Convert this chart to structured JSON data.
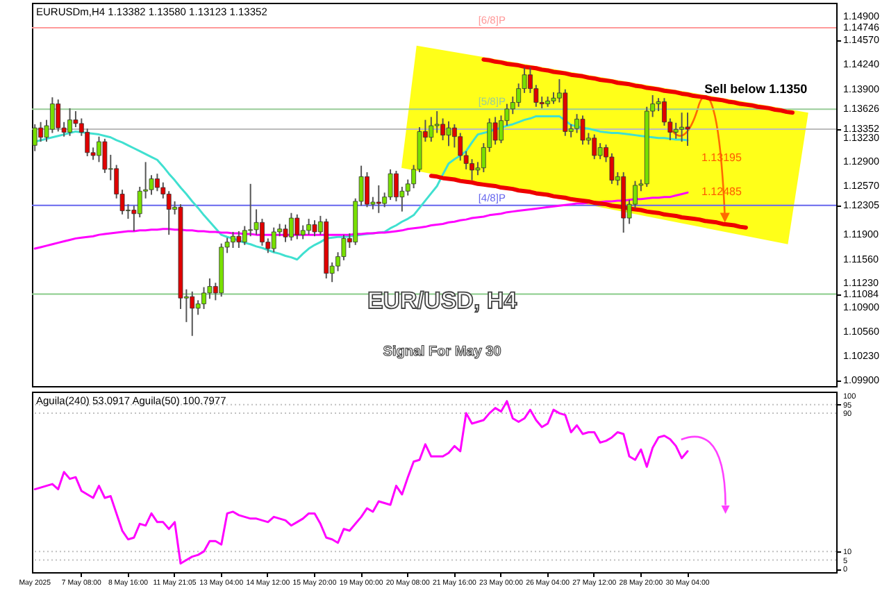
{
  "chart_data": [
    {
      "type": "candlestick",
      "title": "EUR/USD, H4",
      "subtitle": "Signal For May 30",
      "tick_labels": "y",
      "categories": [
        "May 2025",
        null,
        null,
        null,
        null,
        null,
        null,
        null,
        "7 May 08:00",
        null,
        null,
        null,
        null,
        null,
        null,
        null,
        "8 May 16:00",
        null,
        null,
        null,
        null,
        null,
        null,
        null,
        "11 May 21:05",
        null,
        null,
        null,
        null,
        null,
        null,
        null,
        "13 May 04:00",
        null,
        null,
        null,
        null,
        null,
        null,
        null,
        "14 May 12:00",
        null,
        null,
        null,
        null,
        null,
        null,
        null,
        "15 May 20:00",
        null,
        null,
        null,
        null,
        null,
        null,
        null,
        "19 May 00:00",
        null,
        null,
        null,
        null,
        null,
        null,
        null,
        "20 May 08:00",
        null,
        null,
        null,
        null,
        null,
        null,
        null,
        "21 May 16:00",
        null,
        null,
        null,
        null,
        null,
        null,
        null,
        "23 May 00:00",
        null,
        null,
        null,
        null,
        null,
        null,
        null,
        "26 May 04:00",
        null,
        null,
        null,
        null,
        null,
        null,
        null,
        "27 May 12:00",
        null,
        null,
        null,
        null,
        null,
        null,
        null,
        "28 May 20:00",
        null,
        null,
        null,
        null,
        null,
        null,
        null,
        "30 May 04:00",
        null,
        null,
        null,
        null,
        null,
        null,
        null,
        null,
        null,
        null,
        null,
        null,
        null,
        null,
        null,
        null,
        null,
        null,
        null,
        null,
        null,
        null,
        null,
        null,
        null
      ],
      "ohlc": [
        [
          1.1313,
          1.1342,
          1.1305,
          1.1337
        ],
        [
          1.1337,
          1.1345,
          1.1318,
          1.1324
        ],
        [
          1.1324,
          1.1348,
          1.1318,
          1.134
        ],
        [
          1.1335,
          1.1379,
          1.133,
          1.137
        ],
        [
          1.137,
          1.1376,
          1.1332,
          1.1337
        ],
        [
          1.1337,
          1.1345,
          1.1325,
          1.1331
        ],
        [
          1.1331,
          1.1364,
          1.1326,
          1.1348
        ],
        [
          1.1348,
          1.136,
          1.1338,
          1.1343
        ],
        [
          1.1343,
          1.135,
          1.1326,
          1.1331
        ],
        [
          1.1331,
          1.1336,
          1.1298,
          1.1303
        ],
        [
          1.1303,
          1.131,
          1.1293,
          1.1299
        ],
        [
          1.1299,
          1.1325,
          1.129,
          1.1318
        ],
        [
          1.1318,
          1.1322,
          1.1275,
          1.128
        ],
        [
          1.128,
          1.13,
          1.1265,
          1.1281
        ],
        [
          1.1281,
          1.1286,
          1.124,
          1.1246
        ],
        [
          1.1246,
          1.1252,
          1.1218,
          1.1223
        ],
        [
          1.1223,
          1.1232,
          1.1212,
          1.1224
        ],
        [
          1.1224,
          1.123,
          1.1195,
          1.1219
        ],
        [
          1.1219,
          1.1256,
          1.1214,
          1.125
        ],
        [
          1.125,
          1.129,
          1.124,
          1.1252
        ],
        [
          1.1252,
          1.1272,
          1.1245,
          1.1267
        ],
        [
          1.1267,
          1.1274,
          1.125,
          1.1255
        ],
        [
          1.1255,
          1.1262,
          1.124,
          1.1246
        ],
        [
          1.1246,
          1.125,
          1.119,
          1.1225
        ],
        [
          1.1225,
          1.1236,
          1.1218,
          1.1228
        ],
        [
          1.1228,
          1.1232,
          1.1088,
          1.1103
        ],
        [
          1.1103,
          1.1115,
          1.107,
          1.1105
        ],
        [
          1.1105,
          1.1112,
          1.1051,
          1.1089
        ],
        [
          1.1089,
          1.11,
          1.108,
          1.1095
        ],
        [
          1.1095,
          1.1118,
          1.1088,
          1.111
        ],
        [
          1.111,
          1.113,
          1.1102,
          1.1119
        ],
        [
          1.1119,
          1.1124,
          1.11,
          1.111
        ],
        [
          1.111,
          1.1178,
          1.1105,
          1.1173
        ],
        [
          1.1173,
          1.1186,
          1.1165,
          1.118
        ],
        [
          1.118,
          1.1194,
          1.1172,
          1.1188
        ],
        [
          1.1188,
          1.1195,
          1.1172,
          1.118
        ],
        [
          1.118,
          1.1202,
          1.1176,
          1.1196
        ],
        [
          1.1196,
          1.126,
          1.1188,
          1.1197
        ],
        [
          1.1197,
          1.1225,
          1.119,
          1.1207
        ],
        [
          1.1207,
          1.1212,
          1.1175,
          1.118
        ],
        [
          1.118,
          1.1185,
          1.1165,
          1.1171
        ],
        [
          1.1171,
          1.12,
          1.1166,
          1.1194
        ],
        [
          1.1194,
          1.1205,
          1.1188,
          1.1198
        ],
        [
          1.1198,
          1.1204,
          1.118,
          1.1187
        ],
        [
          1.1187,
          1.122,
          1.1182,
          1.1213
        ],
        [
          1.1213,
          1.1218,
          1.1184,
          1.119
        ],
        [
          1.119,
          1.1203,
          1.1184,
          1.1196
        ],
        [
          1.1196,
          1.1212,
          1.119,
          1.1204
        ],
        [
          1.1204,
          1.121,
          1.1188,
          1.1194
        ],
        [
          1.1194,
          1.1216,
          1.119,
          1.1208
        ],
        [
          1.1208,
          1.1212,
          1.113,
          1.1137
        ],
        [
          1.1137,
          1.1152,
          1.1125,
          1.1147
        ],
        [
          1.1147,
          1.1166,
          1.114,
          1.116
        ],
        [
          1.116,
          1.119,
          1.1155,
          1.1185
        ],
        [
          1.1185,
          1.1192,
          1.1172,
          1.118
        ],
        [
          1.118,
          1.124,
          1.1176,
          1.1236
        ],
        [
          1.1236,
          1.1285,
          1.123,
          1.127
        ],
        [
          1.127,
          1.1276,
          1.1228,
          1.1232
        ],
        [
          1.1232,
          1.1242,
          1.1225,
          1.1235
        ],
        [
          1.1235,
          1.1258,
          1.122,
          1.1233
        ],
        [
          1.1233,
          1.1248,
          1.1228,
          1.1242
        ],
        [
          1.1242,
          1.128,
          1.1238,
          1.1274
        ],
        [
          1.1274,
          1.1278,
          1.1236,
          1.1242
        ],
        [
          1.1242,
          1.1256,
          1.1222,
          1.125
        ],
        [
          1.125,
          1.1266,
          1.1244,
          1.126
        ],
        [
          1.126,
          1.1286,
          1.1254,
          1.128
        ],
        [
          1.128,
          1.1338,
          1.1276,
          1.1332
        ],
        [
          1.1332,
          1.1348,
          1.1318,
          1.1324
        ],
        [
          1.1324,
          1.1352,
          1.1318,
          1.134
        ],
        [
          1.134,
          1.136,
          1.133,
          1.1342
        ],
        [
          1.1342,
          1.135,
          1.132,
          1.1327
        ],
        [
          1.1327,
          1.1346,
          1.1312,
          1.1337
        ],
        [
          1.1337,
          1.1342,
          1.131,
          1.1325
        ],
        [
          1.1325,
          1.133,
          1.1292,
          1.1299
        ],
        [
          1.1299,
          1.1305,
          1.128,
          1.1288
        ],
        [
          1.1288,
          1.1294,
          1.1265,
          1.1279
        ],
        [
          1.1279,
          1.129,
          1.1272,
          1.1282
        ],
        [
          1.1282,
          1.1316,
          1.1276,
          1.131
        ],
        [
          1.131,
          1.135,
          1.1304,
          1.1344
        ],
        [
          1.1344,
          1.1352,
          1.1314,
          1.132
        ],
        [
          1.132,
          1.1354,
          1.1316,
          1.1347
        ],
        [
          1.1347,
          1.137,
          1.134,
          1.1363
        ],
        [
          1.1363,
          1.138,
          1.1356,
          1.1372
        ],
        [
          1.1372,
          1.1398,
          1.1366,
          1.1391
        ],
        [
          1.1391,
          1.142,
          1.1385,
          1.141
        ],
        [
          1.141,
          1.142,
          1.1385,
          1.1391
        ],
        [
          1.1391,
          1.1396,
          1.1366,
          1.1372
        ],
        [
          1.1372,
          1.138,
          1.1364,
          1.137
        ],
        [
          1.137,
          1.138,
          1.1366,
          1.1374
        ],
        [
          1.1374,
          1.1386,
          1.137,
          1.1378
        ],
        [
          1.1378,
          1.1404,
          1.1372,
          1.1385
        ],
        [
          1.1385,
          1.139,
          1.1326,
          1.1332
        ],
        [
          1.1332,
          1.1342,
          1.1324,
          1.1336
        ],
        [
          1.1336,
          1.1356,
          1.133,
          1.1349
        ],
        [
          1.1349,
          1.1354,
          1.1314,
          1.132
        ],
        [
          1.132,
          1.133,
          1.1314,
          1.1323
        ],
        [
          1.1323,
          1.1328,
          1.1294,
          1.1299
        ],
        [
          1.1299,
          1.1316,
          1.1294,
          1.131
        ],
        [
          1.131,
          1.1314,
          1.129,
          1.1297
        ],
        [
          1.1297,
          1.1302,
          1.126,
          1.1265
        ],
        [
          1.1265,
          1.1276,
          1.1258,
          1.127
        ],
        [
          1.127,
          1.1276,
          1.1193,
          1.1213
        ],
        [
          1.1213,
          1.1238,
          1.1205,
          1.1232
        ],
        [
          1.1232,
          1.1264,
          1.1226,
          1.1258
        ],
        [
          1.1258,
          1.1266,
          1.125,
          1.126
        ],
        [
          1.126,
          1.1366,
          1.1256,
          1.136
        ],
        [
          1.136,
          1.1382,
          1.1352,
          1.137
        ],
        [
          1.137,
          1.1378,
          1.136,
          1.1373
        ],
        [
          1.1373,
          1.1378,
          1.134,
          1.1345
        ],
        [
          1.1345,
          1.135,
          1.132,
          1.1331
        ],
        [
          1.1331,
          1.1344,
          1.1322,
          1.1335
        ],
        [
          1.1335,
          1.1358,
          1.1318,
          1.1338
        ],
        [
          1.13382,
          1.1358,
          1.13123,
          1.13352
        ],
        null,
        null,
        null,
        null,
        null,
        null,
        null,
        null,
        null,
        null,
        null,
        null,
        null,
        null,
        null,
        null,
        null,
        null,
        null,
        null,
        null,
        null,
        null,
        null,
        null
      ],
      "series": [
        {
          "type": "line",
          "color": "#40e0d0",
          "values": [
            1.1318,
            1.132,
            1.1322,
            1.1324,
            1.1326,
            1.1328,
            1.133,
            1.1332,
            1.1331,
            1.133,
            1.1329,
            1.1328,
            1.1326,
            1.1324,
            1.132,
            1.1317,
            1.1313,
            1.1309,
            1.1305,
            1.1301,
            1.1297,
            1.1293,
            1.1284,
            1.1274,
            1.1265,
            1.1255,
            1.1246,
            1.1236,
            1.1227,
            1.1217,
            1.1208,
            1.1199,
            1.119,
            1.1187,
            1.1185,
            1.1182,
            1.1179,
            1.1177,
            1.1174,
            1.1172,
            1.1169,
            1.1166,
            1.1164,
            1.1161,
            1.1159,
            1.1156,
            1.1164,
            1.1171,
            1.1176,
            1.118,
            1.1185,
            1.1186,
            1.1187,
            1.1187,
            1.1188,
            1.1189,
            1.119,
            1.1191,
            1.1192,
            1.1193,
            1.1194,
            1.1199,
            1.1203,
            1.1208,
            1.1212,
            1.1217,
            1.1227,
            1.1237,
            1.1247,
            1.1257,
            1.1273,
            1.1288,
            1.1294,
            1.1299,
            1.1305,
            1.1317,
            1.1328,
            1.133,
            1.1332,
            1.1335,
            1.1337,
            1.134,
            1.1342,
            1.1345,
            1.1348,
            1.135,
            1.1353,
            1.1353,
            1.1353,
            1.1353,
            1.1353,
            1.1347,
            1.1341,
            1.1339,
            1.1337,
            1.1336,
            1.1334,
            1.1332,
            1.1331,
            1.133,
            1.133,
            1.1329,
            1.1328,
            1.1327,
            1.1326,
            1.1325,
            1.1324,
            1.1323,
            1.1323,
            1.1322,
            1.1321,
            1.1321,
            1.132,
            null,
            null,
            null,
            null,
            null,
            null,
            null,
            null,
            null,
            null,
            null,
            null,
            null,
            null,
            null,
            null,
            null,
            null,
            null,
            null,
            null,
            null,
            null,
            null,
            null
          ]
        },
        {
          "type": "line",
          "color": "#ff00ff",
          "values": [
            1.1171,
            1.1173,
            1.1175,
            1.1177,
            1.1179,
            1.1181,
            1.1183,
            1.1185,
            1.1186,
            1.1187,
            1.1188,
            1.119,
            1.1191,
            1.1192,
            1.1193,
            1.1194,
            1.1195,
            1.1195,
            1.1196,
            1.1196,
            1.1197,
            1.1197,
            1.1198,
            1.1198,
            1.1197,
            1.1197,
            1.1196,
            1.1196,
            1.1195,
            1.1195,
            1.1194,
            1.1194,
            1.1193,
            1.1193,
            1.1192,
            1.1192,
            1.1191,
            1.1191,
            1.119,
            1.119,
            1.119,
            1.119,
            1.119,
            1.119,
            1.119,
            1.119,
            1.119,
            1.119,
            1.119,
            1.119,
            1.119,
            1.119,
            1.119,
            1.119,
            1.119,
            1.1191,
            1.1191,
            1.1192,
            1.1192,
            1.1193,
            1.1193,
            1.1194,
            1.1195,
            1.1196,
            1.1198,
            1.1199,
            1.12,
            1.1201,
            1.1203,
            1.1204,
            1.1205,
            1.1207,
            1.1208,
            1.121,
            1.1211,
            1.1213,
            1.1214,
            1.1215,
            1.1217,
            1.1218,
            1.1219,
            1.1221,
            1.1222,
            1.1223,
            1.1224,
            1.1225,
            1.1226,
            1.1227,
            1.1228,
            1.1229,
            1.123,
            1.1231,
            1.1232,
            1.1233,
            1.1233,
            1.1234,
            1.1234,
            1.1235,
            1.1236,
            1.1236,
            1.1237,
            1.1237,
            1.1238,
            1.1239,
            1.1239,
            1.124,
            1.1241,
            1.1241,
            1.1242,
            1.1242,
            1.1244,
            1.1246,
            1.1248,
            null,
            null,
            null,
            null,
            null,
            null,
            null,
            null,
            null,
            null,
            null,
            null,
            null,
            null,
            null,
            null,
            null,
            null,
            null,
            null,
            null,
            null,
            null,
            null,
            null
          ]
        },
        {
          "type": "line",
          "color": "#ee0000",
          "values": [
            null,
            null,
            null,
            null,
            null,
            null,
            null,
            null,
            null,
            null,
            null,
            null,
            null,
            null,
            null,
            null,
            null,
            null,
            null,
            null,
            null,
            null,
            null,
            null,
            null,
            null,
            null,
            null,
            null,
            null,
            null,
            null,
            null,
            null,
            null,
            null,
            null,
            null,
            null,
            null,
            null,
            null,
            null,
            null,
            null,
            null,
            null,
            null,
            null,
            null,
            null,
            null,
            null,
            null,
            null,
            null,
            null,
            null,
            null,
            null,
            null,
            null,
            null,
            null,
            null,
            null,
            null,
            null,
            null,
            null,
            null,
            null,
            null,
            null,
            null,
            null,
            null,
            1.1431,
            1.143,
            1.1428,
            1.1427,
            1.1425,
            1.1424,
            1.1423,
            1.1421,
            1.142,
            1.1419,
            1.1417,
            1.1416,
            1.1414,
            1.1413,
            1.1412,
            1.141,
            1.1409,
            1.1408,
            1.1406,
            1.1405,
            1.1403,
            1.1402,
            1.1401,
            1.1399,
            1.1398,
            1.1397,
            1.1395,
            1.1394,
            1.1392,
            1.1391,
            1.139,
            1.1388,
            1.1387,
            1.1386,
            1.1384,
            1.1383,
            1.1381,
            1.138,
            1.1379,
            1.1377,
            1.1376,
            1.1375,
            1.1373,
            1.1372,
            1.137,
            1.1369,
            1.1368,
            1.1366,
            1.1365,
            1.1364,
            1.1362,
            1.1361,
            1.1359,
            1.1358,
            null,
            null,
            null,
            null,
            null,
            null,
            null
          ]
        },
        {
          "type": "line",
          "color": "#ee0000",
          "values": [
            null,
            null,
            null,
            null,
            null,
            null,
            null,
            null,
            null,
            null,
            null,
            null,
            null,
            null,
            null,
            null,
            null,
            null,
            null,
            null,
            null,
            null,
            null,
            null,
            null,
            null,
            null,
            null,
            null,
            null,
            null,
            null,
            null,
            null,
            null,
            null,
            null,
            null,
            null,
            null,
            null,
            null,
            null,
            null,
            null,
            null,
            null,
            null,
            null,
            null,
            null,
            null,
            null,
            null,
            null,
            null,
            null,
            null,
            null,
            null,
            null,
            null,
            null,
            null,
            null,
            null,
            null,
            null,
            1.1271,
            1.127,
            1.1268,
            1.1267,
            1.1266,
            1.1264,
            1.1263,
            1.1262,
            1.126,
            1.1259,
            1.1258,
            1.1257,
            1.1255,
            1.1254,
            1.1253,
            1.1251,
            1.125,
            1.1249,
            1.1247,
            1.1246,
            1.1245,
            1.1243,
            1.1242,
            1.1241,
            1.1239,
            1.1238,
            1.1237,
            1.1236,
            1.1234,
            1.1233,
            1.1232,
            1.123,
            1.1229,
            1.1228,
            1.1226,
            1.1225,
            1.1224,
            1.1222,
            1.1221,
            1.122,
            1.1218,
            1.1217,
            1.1216,
            1.1214,
            1.1213,
            1.1212,
            1.1211,
            1.1209,
            1.1208,
            1.1207,
            1.1205,
            1.1204,
            1.1203,
            1.1201,
            1.12,
            null,
            null,
            null,
            null,
            null,
            null,
            null,
            null,
            null,
            null,
            null,
            null,
            null,
            null,
            null
          ]
        }
      ],
      "ylim": [
        1.0982,
        1.1509
      ],
      "yticks": [
        {
          "value": 1.149,
          "label": "1.14900"
        },
        {
          "value": 1.14746,
          "label": "1.14746"
        },
        {
          "value": 1.1457,
          "label": "1.14570"
        },
        {
          "value": 1.1424,
          "label": "1.14240"
        },
        {
          "value": 1.139,
          "label": "1.13900"
        },
        {
          "value": 1.13626,
          "label": "1.13626"
        },
        {
          "value": 1.13352,
          "label": "1.13352"
        },
        {
          "value": 1.1323,
          "label": "1.13230"
        },
        {
          "value": 1.129,
          "label": "1.12900"
        },
        {
          "value": 1.1257,
          "label": "1.12570"
        },
        {
          "value": 1.12305,
          "label": "1.12305"
        },
        {
          "value": 1.119,
          "label": "1.11900"
        },
        {
          "value": 1.1156,
          "label": "1.11560"
        },
        {
          "value": 1.1123,
          "label": "1.11230"
        },
        {
          "value": 1.11084,
          "label": "1.11084"
        },
        {
          "value": 1.109,
          "label": "1.10900"
        },
        {
          "value": 1.1056,
          "label": "1.10560"
        },
        {
          "value": 1.1023,
          "label": "1.10230"
        },
        {
          "value": 1.099,
          "label": "1.09900"
        }
      ],
      "ref_lines": [
        {
          "axis": "y",
          "value": 1.14746,
          "label": "[6/8]P",
          "color": "#ff9999"
        },
        {
          "axis": "y",
          "value": 1.13626,
          "label": "[5/8]P",
          "color": "#99cc99"
        },
        {
          "axis": "y",
          "value": 1.13352,
          "color": "#bbbbbb"
        },
        {
          "axis": "y",
          "value": 1.12305,
          "label": "[4/8]P",
          "color": "#6666ee"
        },
        {
          "axis": "y",
          "value": 1.11084,
          "color": "#88cc88"
        }
      ],
      "annotations": [
        "EURUSDm,H4  1.13382 1.13580 1.13123 1.13352",
        {
          "text": "Sell below 1.1350",
          "y": 1.137
        },
        {
          "text": "1.13195",
          "x": "30 May 04:00",
          "y": 1.132
        },
        {
          "text": "1.12485",
          "x": "30 May 04:00",
          "y": 1.1248
        }
      ]
    },
    {
      "type": "line",
      "categories": [
        "May 2025",
        null,
        null,
        null,
        null,
        null,
        null,
        null,
        "7 May 08:00",
        null,
        null,
        null,
        null,
        null,
        null,
        null,
        "8 May 16:00",
        null,
        null,
        null,
        null,
        null,
        null,
        null,
        "11 May 21:05",
        null,
        null,
        null,
        null,
        null,
        null,
        null,
        "13 May 04:00",
        null,
        null,
        null,
        null,
        null,
        null,
        null,
        "14 May 12:00",
        null,
        null,
        null,
        null,
        null,
        null,
        null,
        "15 May 20:00",
        null,
        null,
        null,
        null,
        null,
        null,
        null,
        "19 May 00:00",
        null,
        null,
        null,
        null,
        null,
        null,
        null,
        "20 May 08:00",
        null,
        null,
        null,
        null,
        null,
        null,
        null,
        "21 May 16:00",
        null,
        null,
        null,
        null,
        null,
        null,
        null,
        "23 May 00:00",
        null,
        null,
        null,
        null,
        null,
        null,
        null,
        "26 May 04:00",
        null,
        null,
        null,
        null,
        null,
        null,
        null,
        "27 May 12:00",
        null,
        null,
        null,
        null,
        null,
        null,
        null,
        "28 May 20:00",
        null,
        null,
        null,
        null,
        null,
        null,
        null,
        "30 May 04:00",
        null,
        null,
        null,
        null,
        null,
        null,
        null,
        null,
        null,
        null,
        null,
        null,
        null,
        null,
        null,
        null,
        null,
        null,
        null,
        null,
        null,
        null,
        null,
        null,
        null
      ],
      "series": [
        {
          "color": "#ff00ff",
          "values": [
            46,
            47,
            48,
            49,
            46,
            56,
            52,
            53,
            45,
            43,
            41,
            48,
            41,
            42,
            32,
            22,
            17,
            18,
            26,
            25,
            32,
            27,
            27,
            23,
            27,
            3,
            5,
            7,
            8,
            10,
            16,
            16,
            14,
            32,
            33,
            31,
            30,
            29,
            29,
            28,
            27,
            30,
            29,
            28,
            25,
            27,
            29,
            32,
            32,
            26,
            18,
            17,
            15,
            23,
            22,
            26,
            30,
            35,
            33,
            39,
            38,
            37,
            48,
            43,
            53,
            62,
            63,
            72,
            65,
            65,
            65,
            67,
            71,
            68,
            90,
            84,
            85,
            86,
            90,
            93,
            91,
            97,
            87,
            85,
            87,
            92,
            86,
            82,
            84,
            92,
            90,
            89,
            79,
            83,
            78,
            79,
            79,
            73,
            74,
            76,
            79,
            78,
            65,
            63,
            69,
            59,
            70,
            76,
            77,
            75,
            71,
            64,
            68,
            null,
            null,
            null,
            null,
            null,
            null,
            null,
            null,
            null,
            null,
            null,
            null,
            null,
            null,
            null,
            null,
            null,
            null,
            null,
            null,
            null,
            null,
            null,
            null,
            null
          ]
        }
      ],
      "ylim": [
        -2,
        102.5
      ],
      "yticks": [
        100,
        95,
        90,
        10,
        5,
        0
      ],
      "ref_lines": [
        {
          "axis": "y",
          "value": 95,
          "color": "#c0c0c0",
          "line_style": "dotted"
        },
        {
          "axis": "y",
          "value": 90,
          "color": "#c0c0c0",
          "line_style": "dotted"
        },
        {
          "axis": "y",
          "value": 10,
          "color": "#c0c0c0",
          "line_style": "dotted"
        },
        {
          "axis": "y",
          "value": 5,
          "color": "#c0c0c0",
          "line_style": "dotted"
        }
      ],
      "annotations": [
        "Aguila(240) 53.0917  Aguila(50) 100.7977"
      ]
    }
  ]
}
